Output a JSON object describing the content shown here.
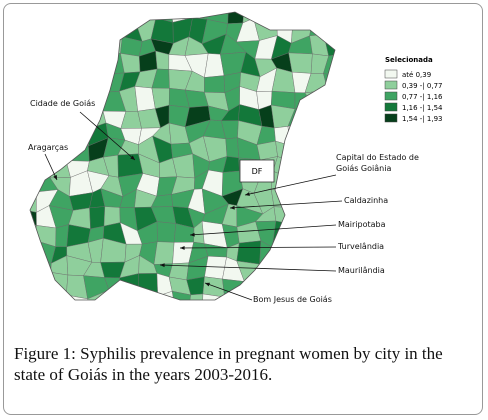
{
  "map": {
    "legend": {
      "title": "Selecionada",
      "items": [
        {
          "label": "até 0,39",
          "color": "#f2f8f0"
        },
        {
          "label": "0,39 -| 0,77",
          "color": "#8fcf9c"
        },
        {
          "label": "0,77 -| 1,16",
          "color": "#3fa463"
        },
        {
          "label": "1,16 -| 1,54",
          "color": "#13783a"
        },
        {
          "label": "1,54 -| 1,93",
          "color": "#063f1b"
        }
      ]
    },
    "district": "DF",
    "annotations": [
      {
        "lines": [
          "Cidade de Goiás"
        ]
      },
      {
        "lines": [
          "Aragarças"
        ]
      },
      {
        "lines": [
          "Capital do Estado de",
          "Goiás Goiânia"
        ]
      },
      {
        "lines": [
          "Caldazinha"
        ]
      },
      {
        "lines": [
          "Mairipotaba"
        ]
      },
      {
        "lines": [
          "Turvelândia"
        ]
      },
      {
        "lines": [
          "Maurilândia"
        ]
      },
      {
        "lines": [
          "Bom Jesus de Goiás"
        ]
      }
    ]
  },
  "caption": {
    "label": "Figure 1:",
    "text": "Syphilis prevalence in pregnant women by city in the state of Goiás in the years 2003-2016."
  }
}
